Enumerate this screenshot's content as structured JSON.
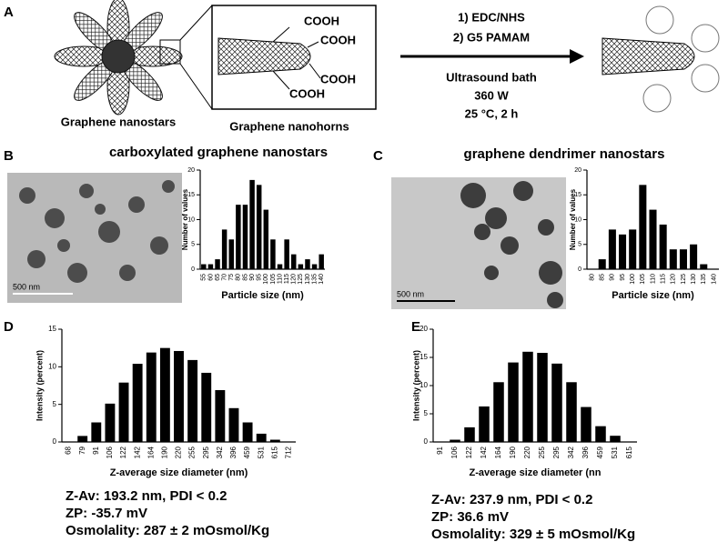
{
  "panels": [
    "A",
    "B",
    "C",
    "D",
    "E"
  ],
  "schematic": {
    "left_label": "Graphene nanostars",
    "middle_label": "Graphene nanohorns",
    "groups": [
      "COOH",
      "COOH",
      "COOH",
      "COOH"
    ],
    "step1": "1) EDC/NHS",
    "step2": "2) G5 PAMAM",
    "condition1": "Ultrasound bath",
    "condition2": "360 W",
    "condition3": "25 °C, 2 h"
  },
  "tem_images": [
    {
      "scale_bar": "500 nm"
    },
    {
      "scale_bar": "500 nm"
    }
  ],
  "chart_data": [
    {
      "type": "bar",
      "title": "carboxylated graphene nanostars",
      "x_label": "Particle size (nm)",
      "y_label": "Number of values",
      "categories": [
        "55",
        "60",
        "65",
        "70",
        "75",
        "80",
        "85",
        "90",
        "95",
        "100",
        "105",
        "110",
        "115",
        "120",
        "125",
        "130",
        "135",
        "140"
      ],
      "values": [
        1,
        1,
        2,
        8,
        6,
        13,
        13,
        18,
        17,
        12,
        6,
        1,
        6,
        3,
        1,
        2,
        1,
        3
      ],
      "color": "#000000",
      "ylim": [
        0,
        20
      ],
      "yticks": [
        0,
        5,
        10,
        15,
        20
      ]
    },
    {
      "type": "bar",
      "title": "graphene dendrimer nanostars",
      "x_label": "Particle size (nm)",
      "y_label": "Number of values",
      "categories": [
        "80",
        "85",
        "90",
        "95",
        "100",
        "105",
        "110",
        "115",
        "120",
        "125",
        "130",
        "135",
        "140"
      ],
      "values": [
        0,
        2,
        8,
        7,
        8,
        17,
        12,
        9,
        4,
        4,
        5,
        1,
        0
      ],
      "color": "#000000",
      "ylim": [
        0,
        20
      ],
      "yticks": [
        0,
        5,
        10,
        15,
        20
      ]
    },
    {
      "type": "bar",
      "x_label": "Z-average size diameter (nm)",
      "y_label": "Intensity (percent)",
      "categories": [
        "68",
        "79",
        "91",
        "106",
        "122",
        "142",
        "164",
        "190",
        "220",
        "255",
        "295",
        "342",
        "396",
        "459",
        "531",
        "615",
        "712"
      ],
      "values": [
        0,
        0.8,
        2.6,
        5.1,
        7.9,
        10.4,
        11.9,
        12.5,
        12.1,
        10.9,
        9.2,
        6.9,
        4.5,
        2.6,
        1.1,
        0.3,
        0
      ],
      "color": "#000000",
      "ylim": [
        0,
        15
      ],
      "yticks": [
        0,
        5,
        10,
        15
      ],
      "annotations": [
        "Z-Av: 193.2 nm,  PDI < 0.2",
        "ZP: -35.7 mV",
        "Osmolality: 287 ± 2 mOsmol/Kg"
      ]
    },
    {
      "type": "bar",
      "x_label": "Z-average size diameter (nn",
      "y_label": "Intensity (percent)",
      "categories": [
        "91",
        "106",
        "122",
        "142",
        "164",
        "190",
        "220",
        "255",
        "295",
        "342",
        "396",
        "459",
        "531",
        "615"
      ],
      "values": [
        0,
        0.4,
        2.6,
        6.3,
        10.6,
        14.1,
        16,
        15.8,
        13.9,
        10.6,
        6.2,
        2.8,
        1.1,
        0
      ],
      "color": "#000000",
      "ylim": [
        0,
        20
      ],
      "yticks": [
        0,
        5,
        10,
        15,
        20
      ],
      "annotations": [
        "Z-Av: 237.9 nm,  PDI < 0.2",
        "ZP: 36.6 mV",
        "Osmolality: 329 ± 5 mOsmol/Kg"
      ]
    }
  ]
}
